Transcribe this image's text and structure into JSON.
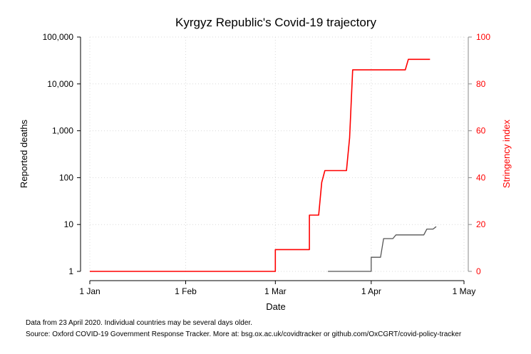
{
  "chart_data": {
    "type": "line",
    "title": "Kyrgyz Republic's Covid-19 trajectory",
    "xlabel": "Date",
    "ylabel_left": "Reported deaths",
    "ylabel_right": "Stringency index",
    "x_ticks": [
      "1 Jan",
      "1 Feb",
      "1 Mar",
      "1 Apr",
      "1 May"
    ],
    "y_left_ticks": [
      "1",
      "10",
      "100",
      "1,000",
      "10,000",
      "100,000"
    ],
    "y_left_tick_values": [
      1,
      10,
      100,
      1000,
      10000,
      100000
    ],
    "y_left_scale": "log",
    "y_right_ticks": [
      "0",
      "20",
      "40",
      "60",
      "80",
      "100"
    ],
    "y_right_tick_values": [
      0,
      20,
      40,
      60,
      80,
      100
    ],
    "ylim_left": [
      1,
      100000
    ],
    "ylim_right": [
      0,
      100
    ],
    "xlim": [
      "2020-01-01",
      "2020-05-01"
    ],
    "grid": true,
    "series": [
      {
        "axis": "right",
        "color": "#ff0000",
        "points": [
          [
            "2020-01-01",
            0
          ],
          [
            "2020-03-01",
            0
          ],
          [
            "2020-03-01",
            9.3
          ],
          [
            "2020-03-12",
            9.3
          ],
          [
            "2020-03-12",
            24
          ],
          [
            "2020-03-15",
            24
          ],
          [
            "2020-03-16",
            38
          ],
          [
            "2020-03-17",
            43
          ],
          [
            "2020-03-24",
            43
          ],
          [
            "2020-03-25",
            57
          ],
          [
            "2020-03-26",
            86
          ],
          [
            "2020-04-12",
            86
          ],
          [
            "2020-04-13",
            90.5
          ],
          [
            "2020-04-20",
            90.5
          ]
        ]
      },
      {
        "axis": "left",
        "color": "#555555",
        "points": [
          [
            "2020-03-18",
            1
          ],
          [
            "2020-04-01",
            1
          ],
          [
            "2020-04-01",
            2
          ],
          [
            "2020-04-04",
            2
          ],
          [
            "2020-04-05",
            5
          ],
          [
            "2020-04-08",
            5
          ],
          [
            "2020-04-09",
            6
          ],
          [
            "2020-04-18",
            6
          ],
          [
            "2020-04-19",
            8
          ],
          [
            "2020-04-21",
            8
          ],
          [
            "2020-04-22",
            9
          ]
        ]
      }
    ]
  },
  "footnotes": {
    "line1": "Data from 23 April 2020. Individual countries may be several days older.",
    "line2": "Source: Oxford COVID-19 Government Response Tracker. More at: bsg.ox.ac.uk/covidtracker or github.com/OxCGRT/covid-policy-tracker"
  }
}
